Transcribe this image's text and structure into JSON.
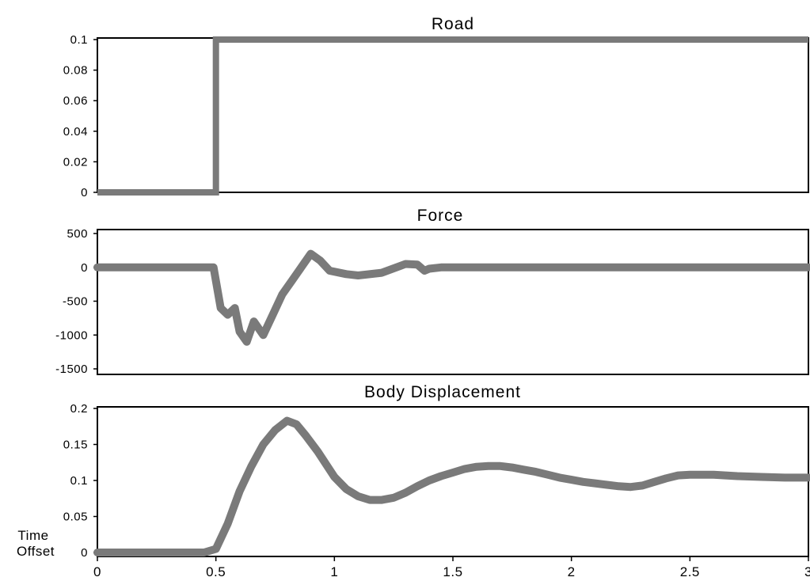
{
  "corner_label": {
    "line1": "Time",
    "line2": "Offset"
  },
  "chart_data": [
    {
      "type": "line",
      "title": "Road",
      "xlim": [
        0,
        3
      ],
      "ylim": [
        0,
        0.1
      ],
      "yticks": [
        "0.1",
        "0.08",
        "0.06",
        "0.04",
        "0.02",
        "0"
      ],
      "line_color": "#7a7a7a",
      "series": [
        {
          "x": [
            0,
            0.5,
            0.5,
            3
          ],
          "y": [
            0,
            0,
            0.1,
            0.1
          ]
        }
      ]
    },
    {
      "type": "line",
      "title": "Force",
      "xlim": [
        0,
        3
      ],
      "ylim": [
        -1600,
        500
      ],
      "yticks": [
        "500",
        "0",
        "-500",
        "-1000",
        "-1500"
      ],
      "line_color": "#7a7a7a",
      "series": [
        {
          "x": [
            0,
            0.49,
            0.52,
            0.55,
            0.58,
            0.6,
            0.63,
            0.66,
            0.7,
            0.74,
            0.78,
            0.82,
            0.86,
            0.9,
            0.94,
            0.98,
            1.05,
            1.1,
            1.2,
            1.3,
            1.35,
            1.38,
            1.4,
            1.45,
            3
          ],
          "y": [
            0,
            0,
            -600,
            -700,
            -600,
            -950,
            -1100,
            -800,
            -1000,
            -700,
            -400,
            -200,
            0,
            200,
            100,
            -50,
            -100,
            -120,
            -80,
            50,
            40,
            -50,
            -20,
            0,
            0
          ]
        }
      ]
    },
    {
      "type": "line",
      "title": "Body Displacement",
      "xlim": [
        0,
        3
      ],
      "xticks": [
        "0",
        "0.5",
        "1",
        "1.5",
        "2",
        "2.5",
        "3"
      ],
      "ylim": [
        0,
        0.2
      ],
      "yticks": [
        "0.2",
        "0.15",
        "0.1",
        "0.05",
        "0"
      ],
      "line_color": "#7a7a7a",
      "series": [
        {
          "x": [
            0,
            0.45,
            0.5,
            0.55,
            0.6,
            0.65,
            0.7,
            0.75,
            0.8,
            0.84,
            0.88,
            0.93,
            1.0,
            1.05,
            1.1,
            1.15,
            1.2,
            1.25,
            1.3,
            1.35,
            1.4,
            1.45,
            1.5,
            1.55,
            1.6,
            1.65,
            1.7,
            1.75,
            1.8,
            1.85,
            1.9,
            1.95,
            2.0,
            2.05,
            2.1,
            2.15,
            2.2,
            2.25,
            2.3,
            2.35,
            2.4,
            2.45,
            2.5,
            2.55,
            2.6,
            2.65,
            2.7,
            2.8,
            2.9,
            3.0
          ],
          "y": [
            0,
            0,
            0.005,
            0.04,
            0.085,
            0.12,
            0.15,
            0.17,
            0.183,
            0.178,
            0.162,
            0.14,
            0.105,
            0.088,
            0.078,
            0.073,
            0.073,
            0.076,
            0.083,
            0.092,
            0.1,
            0.106,
            0.111,
            0.116,
            0.119,
            0.12,
            0.12,
            0.118,
            0.115,
            0.112,
            0.108,
            0.104,
            0.101,
            0.098,
            0.096,
            0.094,
            0.092,
            0.091,
            0.093,
            0.098,
            0.103,
            0.107,
            0.108,
            0.108,
            0.108,
            0.107,
            0.106,
            0.105,
            0.104,
            0.104
          ]
        }
      ]
    }
  ]
}
